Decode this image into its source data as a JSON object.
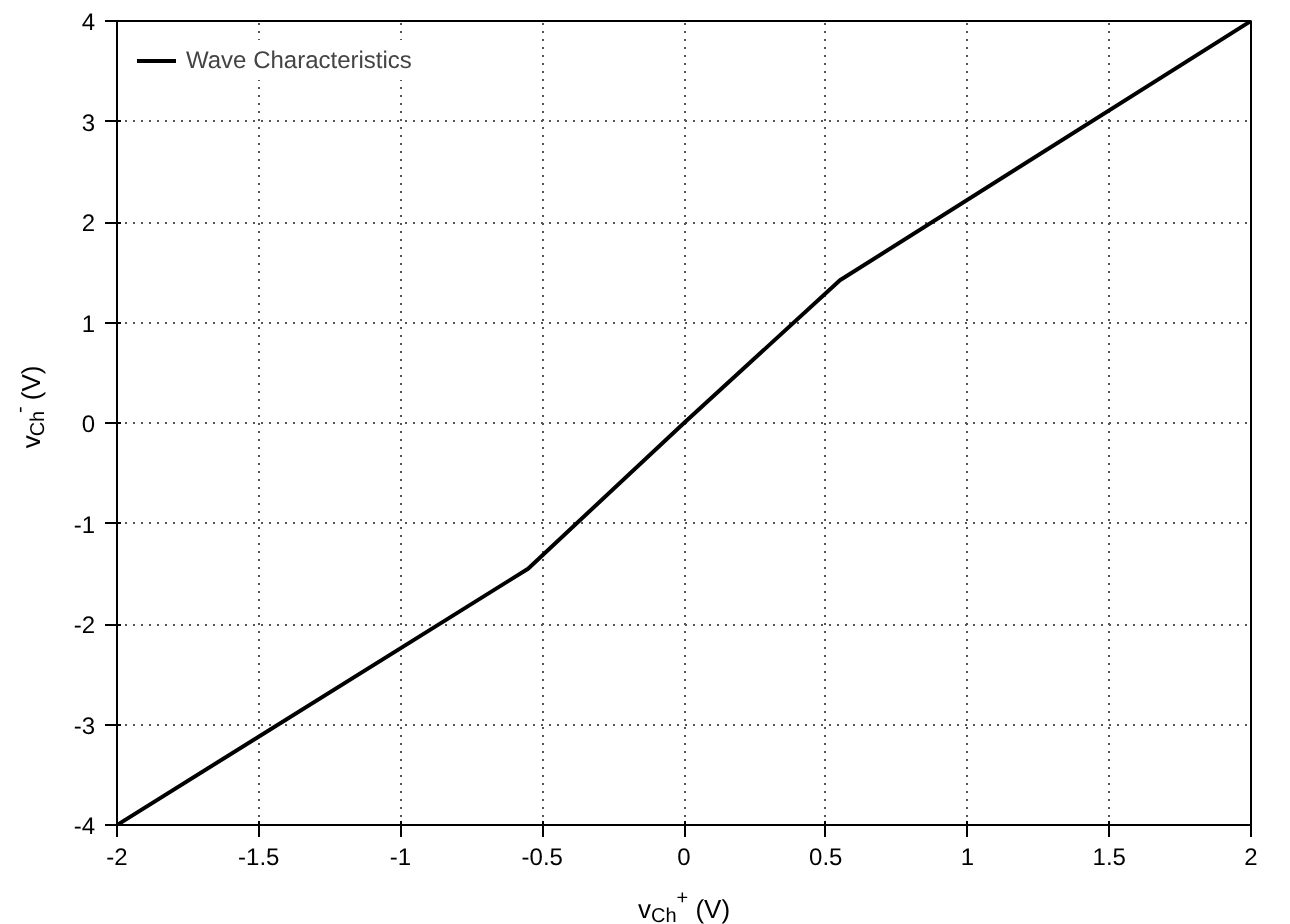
{
  "chart_data": {
    "type": "line",
    "xlabel": "v$_{Ch}$$^{+}$ (V)",
    "ylabel": "v$_{Ch}$$^{-}$ (V)",
    "x": [
      -2,
      -0.55,
      0,
      0.55,
      2
    ],
    "series": [
      {
        "name": "Wave Characteristics",
        "color": "#000000",
        "values": [
          -4,
          -1.45,
          0,
          1.42,
          4
        ]
      }
    ],
    "xlim": [
      -2,
      2
    ],
    "ylim": [
      -4,
      4
    ],
    "xticks": [
      -2,
      -1.5,
      -1,
      -0.5,
      0,
      0.5,
      1,
      1.5,
      2
    ],
    "yticks": [
      -4,
      -3,
      -2,
      -1,
      0,
      1,
      2,
      3,
      4
    ],
    "grid": true,
    "legend": "top left",
    "marker": "none",
    "line_style": "solid"
  }
}
